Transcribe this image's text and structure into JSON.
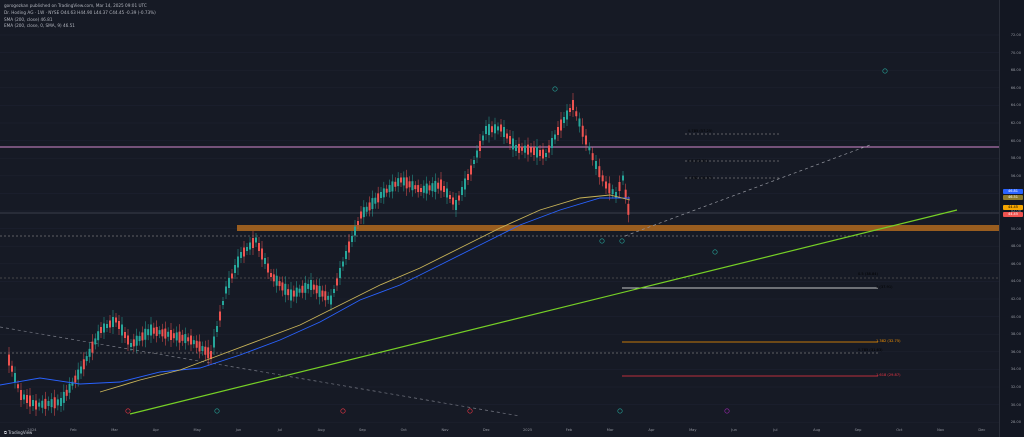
{
  "header": {
    "publisher": "gorogezkan published on TradingView.com, Mar 14, 2025 09:01 UTC",
    "symbol_line": "Dr. Hoding AG · 1W · NYSE  O44.63  H44.90  L44.37  C44.45  -0.39 (-0.73%)",
    "sma_line": "SMA (200, close)  46.81",
    "ema_line": "EMA (200, close, 0, SMA, 9)  46.51"
  },
  "price_axis": {
    "ticks": [
      "72.00",
      "70.00",
      "68.00",
      "66.00",
      "64.00",
      "62.00",
      "60.00",
      "58.00",
      "56.00",
      "54.00",
      "52.00",
      "50.00",
      "48.00",
      "46.00",
      "44.00",
      "42.00",
      "40.00",
      "38.00",
      "36.00",
      "34.00",
      "32.00",
      "30.00",
      "28.00"
    ]
  },
  "time_axis": {
    "labels": [
      "2024",
      "Feb",
      "Mar",
      "Apr",
      "May",
      "Jun",
      "Jul",
      "Aug",
      "Sep",
      "Oct",
      "Nov",
      "Dec",
      "2025",
      "Feb",
      "Mar",
      "Apr",
      "May",
      "Jun",
      "Jul",
      "Aug",
      "Sep",
      "Oct",
      "Nov",
      "Dec"
    ]
  },
  "price_tags": {
    "sma_tag": "46.81",
    "ema_tag": "46.51",
    "current_tag": "44.45",
    "pink_tag": "56.00"
  },
  "fib_labels": [
    {
      "text": "0.785 (57.25)",
      "color": "#d1d4dc"
    },
    {
      "text": "0.5 (52.51)",
      "color": "#d1d4dc"
    },
    {
      "text": "0.382 (50.57)",
      "color": "#d1d4dc"
    },
    {
      "text": "0.5 (38.84)",
      "color": "#d1d4dc"
    },
    {
      "text": "1 (37.91)",
      "color": "#ffffff"
    },
    {
      "text": "1.382 (32.75)",
      "color": "#ff9800"
    },
    {
      "text": "0.785 (31.63)",
      "color": "#d1d4dc"
    },
    {
      "text": "1.618 (29.87)",
      "color": "#f23645"
    }
  ],
  "footer": {
    "logo": "TradingView",
    "date_badge": "Mar 14 2025"
  },
  "colors": {
    "up": "#26a69a",
    "down": "#ef5350",
    "sma": "#2962ff",
    "ema": "#c9b458",
    "trend": "#76d026",
    "pink": "#d48bd0",
    "zone": "#b06a1e"
  }
}
